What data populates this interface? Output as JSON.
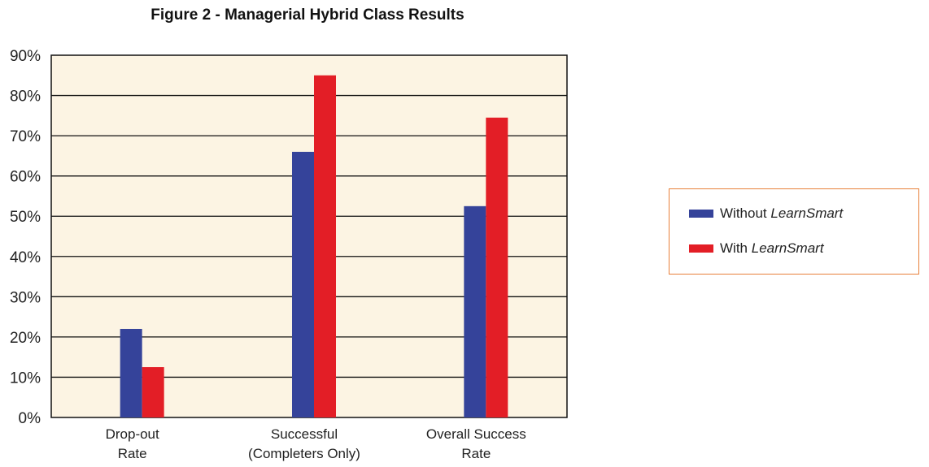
{
  "chart_data": {
    "type": "bar",
    "title": "Figure 2 - Managerial Hybrid Class Results",
    "categories": [
      [
        "Drop-out",
        "Rate"
      ],
      [
        "Successful",
        "(Completers Only)"
      ],
      [
        "Overall Success",
        "Rate"
      ]
    ],
    "series": [
      {
        "name_prefix": "Without",
        "name_emph": "LearnSmart",
        "color": "#35439a",
        "values": [
          22,
          66,
          52.5
        ]
      },
      {
        "name_prefix": "With",
        "name_emph": "LearnSmart",
        "color": "#e31e26",
        "values": [
          12.5,
          85,
          74.5
        ]
      }
    ],
    "y_ticks": [
      "0%",
      "10%",
      "20%",
      "30%",
      "40%",
      "50%",
      "60%",
      "70%",
      "80%",
      "90%"
    ],
    "ylim": [
      0,
      90
    ],
    "grid": true,
    "plot_background": "#fcf4e3",
    "legend_position": "right",
    "legend_border_color": "#e8803a"
  }
}
